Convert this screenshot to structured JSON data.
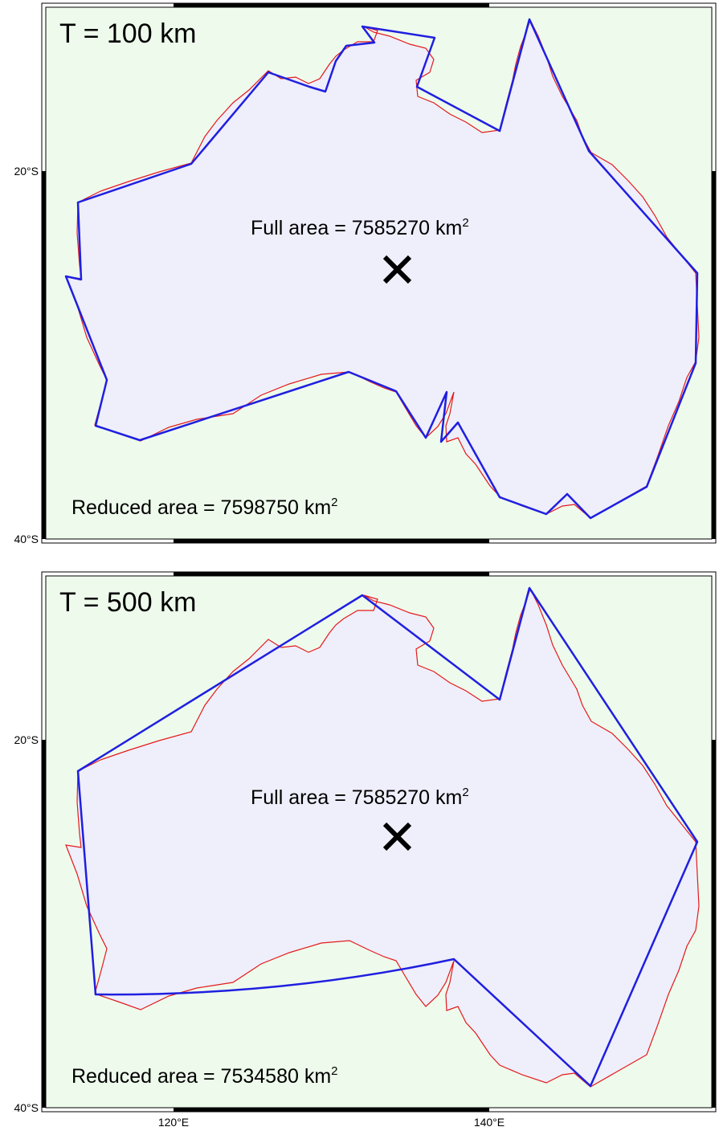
{
  "panels": [
    {
      "title": "T = 100 km",
      "full_area_label": "Full area = 7585270 km",
      "reduced_area_label": "Reduced area = 7598750 km",
      "superscript": "2",
      "lat_ticks": [
        "20°S",
        "40°S"
      ]
    },
    {
      "title": "T = 500 km",
      "full_area_label": "Full area = 7585270 km",
      "reduced_area_label": "Reduced area = 7534580 km",
      "superscript": "2",
      "lat_ticks": [
        "20°S",
        "40°S"
      ]
    }
  ],
  "lon_ticks": [
    "120°E",
    "140°E"
  ],
  "colors": {
    "ocean": "#eefbec",
    "land_fill": "#efeefb",
    "coastline": "#e31a1c",
    "simplified_outline": "#1f1fe0",
    "centroid_marker": "#000000"
  },
  "icons": {
    "centroid": "x-mark-icon"
  }
}
